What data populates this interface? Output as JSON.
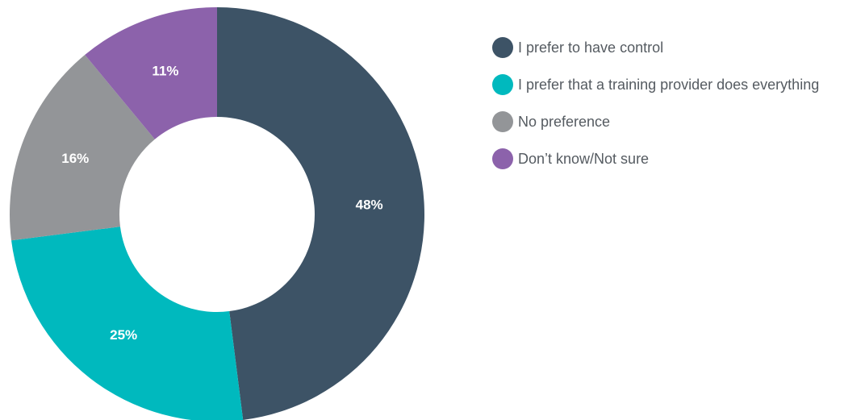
{
  "chart_data": {
    "type": "pie",
    "variant": "donut",
    "title": "",
    "legend_position": "right",
    "slices": [
      {
        "label": "I prefer to have control",
        "value": 48,
        "value_label": "48%",
        "color": "#3d5366"
      },
      {
        "label": "I prefer that a training provider does everything",
        "value": 25,
        "value_label": "25%",
        "color": "#00b9be"
      },
      {
        "label": "No preference",
        "value": 16,
        "value_label": "16%",
        "color": "#939598"
      },
      {
        "label": "Don’t know/Not sure",
        "value": 11,
        "value_label": "11%",
        "color": "#8c62ab"
      }
    ]
  }
}
